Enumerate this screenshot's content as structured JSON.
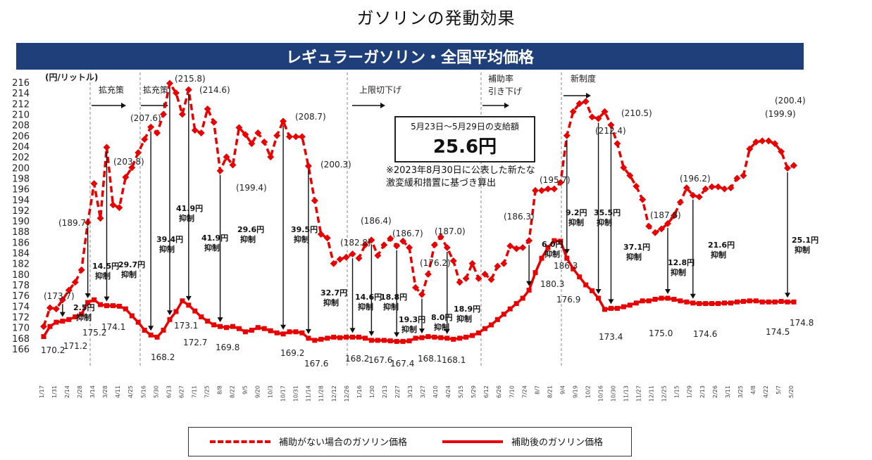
{
  "title": "ガソリンの発動効果",
  "banner": "レギュラーガソリン・全国平均価格",
  "callout": {
    "line1": "5月23日～5月29日の支給額",
    "line2": "25.6円"
  },
  "note": {
    "line1": "※2023年8月30日に公表した新たな",
    "line2": "激変緩和措置に基づき算出"
  },
  "legend": {
    "dashed": "補助がない場合のガソリン価格",
    "solid": "補助後のガソリン価格"
  },
  "colors": {
    "series": "#e60000",
    "banner": "#1f3f7a",
    "label_grey": "#777777"
  },
  "phases": [
    "拡充策",
    "拡充策",
    "上限切下げ",
    "補助率",
    "引き下げ",
    "新制度"
  ],
  "chart_data": {
    "type": "line",
    "ylabel": "(円/リットル)",
    "ylim": [
      166,
      216
    ],
    "yticks": [
      166,
      168,
      170,
      172,
      174,
      176,
      178,
      180,
      182,
      184,
      186,
      188,
      190,
      192,
      194,
      196,
      198,
      200,
      202,
      204,
      206,
      208,
      210,
      212,
      214,
      216
    ],
    "xticks": [
      "1/17",
      "1/31",
      "2/14",
      "2/28",
      "3/14",
      "3/28",
      "4/11",
      "4/25",
      "5/16",
      "5/30",
      "6/13",
      "6/27",
      "7/11",
      "7/25",
      "8/8",
      "8/22",
      "9/5",
      "9/20",
      "10/3",
      "10/17",
      "10/31",
      "11/14",
      "11/28",
      "12/12",
      "12/26",
      "1/16",
      "1/30",
      "2/13",
      "2/27",
      "3/13",
      "3/27",
      "4/10",
      "4/24",
      "5/15",
      "5/29",
      "6/12",
      "6/26",
      "7/10",
      "7/24",
      "8/7",
      "8/21",
      "9/4",
      "9/19",
      "10/2",
      "10/16",
      "10/30",
      "11/13",
      "11/27",
      "12/11",
      "12/25",
      "1/15",
      "1/29",
      "2/13",
      "2/26",
      "3/11",
      "3/25",
      "4/8",
      "4/22",
      "5/7",
      "5/20"
    ],
    "series": [
      {
        "name": "補助がない場合のガソリン価格",
        "style": "dashed",
        "values": [
          170.2,
          173.7,
          173.5,
          175.2,
          177.0,
          178.5,
          180.8,
          189.7,
          197.0,
          190.5,
          203.8,
          193.0,
          192.5,
          198.2,
          200.0,
          202.8,
          205.3,
          207.6,
          206.5,
          210.0,
          215.8,
          214.0,
          210.0,
          214.6,
          207.0,
          206.5,
          211.0,
          208.5,
          199.4,
          202.0,
          200.5,
          207.5,
          206.2,
          204.5,
          206.5,
          204.8,
          202.0,
          206.0,
          208.7,
          205.8,
          205.8,
          205.8,
          200.3,
          193.8,
          187.5,
          186.8,
          182.0,
          182.8,
          183.2,
          183.8,
          183.0,
          185.5,
          186.4,
          183.5,
          185.5,
          186.7,
          185.3,
          186.2,
          185.0,
          177.5,
          176.2,
          180.0,
          185.5,
          187.0,
          185.0,
          182.5,
          178.5,
          179.2,
          182.0,
          179.2,
          180.0,
          179.0,
          181.5,
          182.0,
          185.3,
          184.8,
          185.0,
          186.3,
          195.7,
          195.7,
          196.0,
          196.0,
          197.2,
          206.0,
          210.5,
          212.0,
          212.4,
          209.5,
          209.2,
          210.5,
          208.0,
          204.5,
          200.0,
          198.5,
          196.5,
          194.0,
          189.0,
          187.8,
          188.5,
          189.5,
          191.0,
          193.5,
          196.2,
          194.8,
          194.5,
          196.0,
          196.4,
          196.4,
          196.0,
          196.2,
          198.0,
          198.5,
          203.5,
          204.8,
          205.0,
          205.0,
          204.5,
          203.0,
          199.9,
          200.4
        ]
      },
      {
        "name": "補助後のガソリン価格",
        "style": "solid",
        "values": [
          168.3,
          170.2,
          171.0,
          171.2,
          171.5,
          172.0,
          172.5,
          174.7,
          175.2,
          174.3,
          174.1,
          174.1,
          174.0,
          173.5,
          172.2,
          171.0,
          169.5,
          168.6,
          168.2,
          169.5,
          171.5,
          173.0,
          175.0,
          174.2,
          173.1,
          172.0,
          171.2,
          170.5,
          170.2,
          170.0,
          170.2,
          169.8,
          169.2,
          169.5,
          170.0,
          169.8,
          169.4,
          169.0,
          168.8,
          169.2,
          169.2,
          169.0,
          168.0,
          167.6,
          167.8,
          168.0,
          168.2,
          168.1,
          168.2,
          168.2,
          168.2,
          168.0,
          167.6,
          167.6,
          167.6,
          167.5,
          167.4,
          167.4,
          167.5,
          168.0,
          168.1,
          168.3,
          168.2,
          168.1,
          168.0,
          167.8,
          168.0,
          168.2,
          168.5,
          169.0,
          169.8,
          170.5,
          171.5,
          172.5,
          173.5,
          174.5,
          175.5,
          177.0,
          180.3,
          183.0,
          185.0,
          186.3,
          186.2,
          183.0,
          181.0,
          179.5,
          178.0,
          176.9,
          175.5,
          173.4,
          173.6,
          173.6,
          173.9,
          174.2,
          174.6,
          175.0,
          175.0,
          175.3,
          175.5,
          175.5,
          175.3,
          175.0,
          174.8,
          174.6,
          174.5,
          174.5,
          174.5,
          174.5,
          174.6,
          174.6,
          174.8,
          174.9,
          175.0,
          175.0,
          174.8,
          174.8,
          174.8,
          174.9,
          174.8,
          174.8
        ]
      }
    ],
    "value_labels": [
      "(173.7)",
      "(189.7)",
      "(203.8)",
      "(207.6)",
      "(215.8)",
      "(214.6)",
      "(199.4)",
      "(208.7)",
      "(200.3)",
      "(182.8)",
      "(186.4)",
      "(186.7)",
      "(176.2)",
      "(187.0)",
      "(186.3)",
      "(195.7)",
      "(212.4)",
      "(210.5)",
      "(187.8)",
      "(196.2)",
      "(199.9)",
      "(200.4)",
      "170.2",
      "171.2",
      "175.2",
      "174.1",
      "168.2",
      "173.1",
      "172.7",
      "169.8",
      "169.2",
      "167.6",
      "168.2",
      "167.6",
      "167.4",
      "168.1",
      "168.1",
      "180.3",
      "186.3",
      "176.9",
      "173.4",
      "175.0",
      "174.6",
      "174.5",
      "174.8"
    ],
    "suppression_labels": [
      {
        "v": "2.5円",
        "u": "抑制"
      },
      {
        "v": "14.5円",
        "u": "抑制"
      },
      {
        "v": "29.7円",
        "u": "抑制"
      },
      {
        "v": "39.4円",
        "u": "抑制"
      },
      {
        "v": "41.9円",
        "u": "抑制"
      },
      {
        "v": "41.9円",
        "u": "抑制"
      },
      {
        "v": "29.6円",
        "u": "抑制"
      },
      {
        "v": "39.5円",
        "u": "抑制"
      },
      {
        "v": "32.7円",
        "u": "抑制"
      },
      {
        "v": "14.6円",
        "u": "抑制"
      },
      {
        "v": "18.8円",
        "u": "抑制"
      },
      {
        "v": "19.3円",
        "u": "抑制"
      },
      {
        "v": "8.0円",
        "u": "抑制"
      },
      {
        "v": "18.9円",
        "u": "抑制"
      },
      {
        "v": "6.0円",
        "u": "抑制"
      },
      {
        "v": "9.2円",
        "u": "抑制"
      },
      {
        "v": "35.5円",
        "u": "抑制"
      },
      {
        "v": "37.1円",
        "u": "抑制"
      },
      {
        "v": "12.8円",
        "u": "抑制"
      },
      {
        "v": "21.6円",
        "u": "抑制"
      },
      {
        "v": "25.1円",
        "u": "抑制"
      }
    ]
  }
}
